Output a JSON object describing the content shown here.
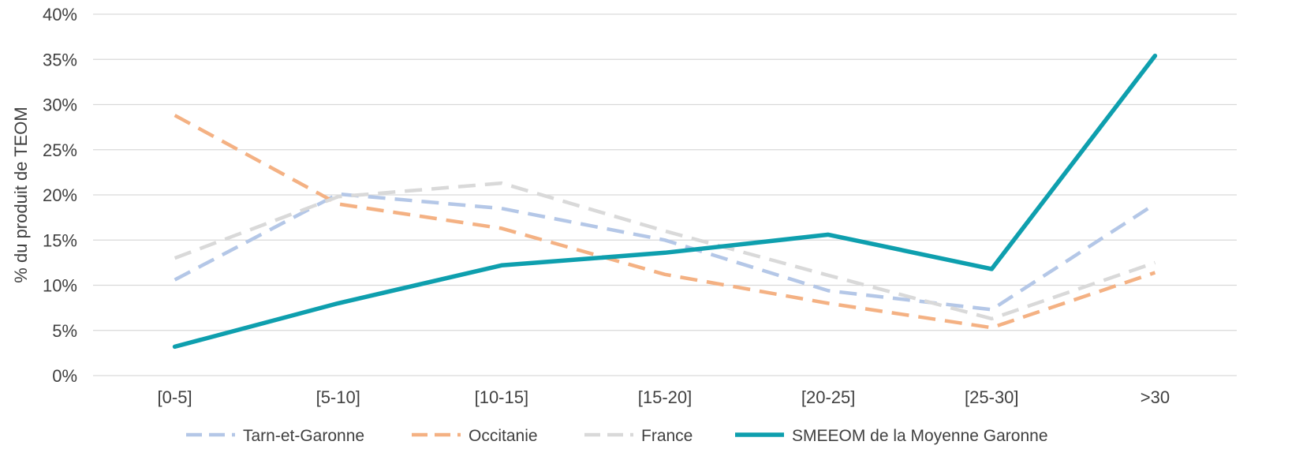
{
  "chart_data": {
    "type": "line",
    "title": "",
    "xlabel": "",
    "ylabel": "% du produit de TEOM",
    "categories": [
      "[0-5]",
      "[5-10]",
      "[10-15]",
      "[15-20]",
      "[20-25]",
      "[25-30]",
      ">30"
    ],
    "ylim": [
      0,
      40
    ],
    "yticks": [
      "0%",
      "5%",
      "10%",
      "15%",
      "20%",
      "25%",
      "30%",
      "35%",
      "40%"
    ],
    "grid": true,
    "legend_position": "bottom",
    "series": [
      {
        "name": "Tarn-et-Garonne",
        "values": [
          10.6,
          20.1,
          18.5,
          15.0,
          9.4,
          7.3,
          19.0
        ],
        "color": "#b4c7e7",
        "style": "dashed"
      },
      {
        "name": "Occitanie",
        "values": [
          28.8,
          19.0,
          16.3,
          11.2,
          8.0,
          5.3,
          11.4
        ],
        "color": "#f4b183",
        "style": "dashed"
      },
      {
        "name": "France",
        "values": [
          13.0,
          19.8,
          21.3,
          16.0,
          11.1,
          6.3,
          12.5
        ],
        "color": "#d9d9d9",
        "style": "dashed"
      },
      {
        "name": "SMEEOM de la Moyenne Garonne",
        "values": [
          3.2,
          8.0,
          12.2,
          13.6,
          15.6,
          11.8,
          35.4
        ],
        "color": "#0e9fae",
        "style": "solid"
      }
    ]
  }
}
